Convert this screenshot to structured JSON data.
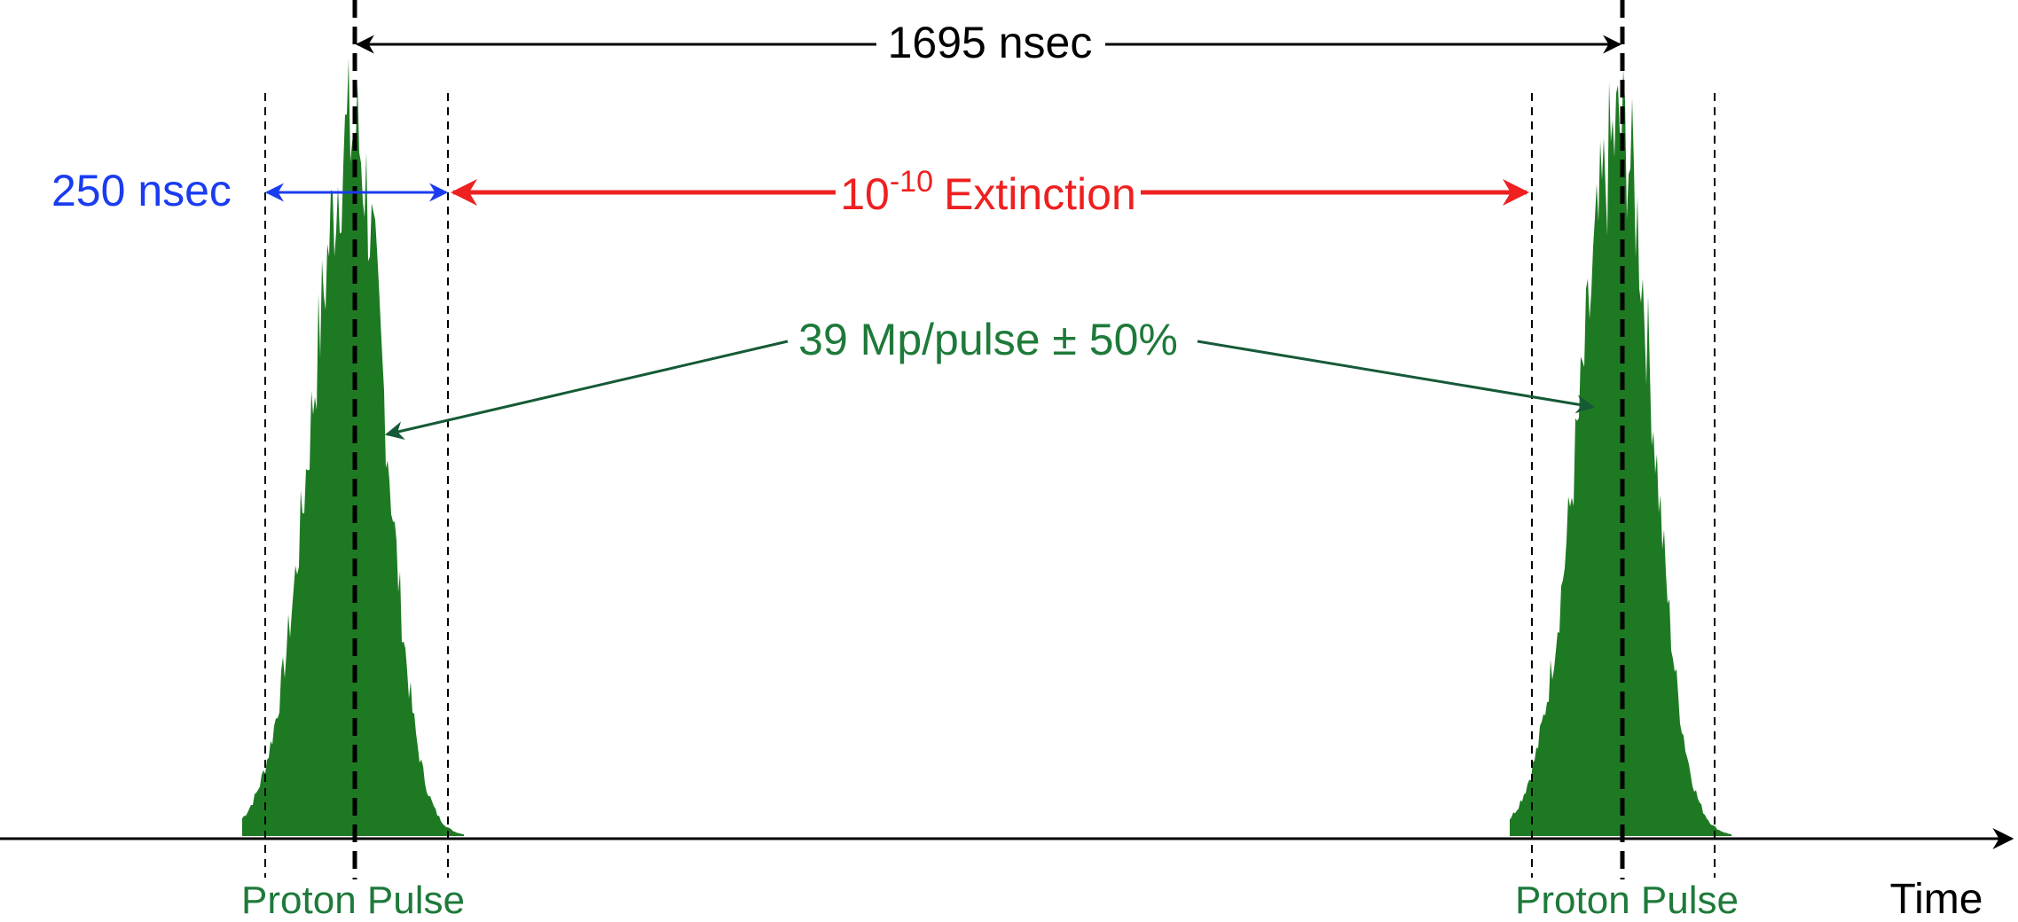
{
  "labels": {
    "period": "1695 nsec",
    "pulse_width": "250 nsec",
    "extinction_base": "10",
    "extinction_exponent": "-10",
    "extinction_word": "Extinction",
    "intensity": "39 Mp/pulse ± 50%",
    "pulse_left": "Proton Pulse",
    "pulse_right": "Proton Pulse",
    "time_axis": "Time"
  },
  "colors": {
    "period": "#000000",
    "pulse_width": "#1a3cf0",
    "extinction": "#ee2020",
    "intensity": "#1e7a3a",
    "pulse_fill": "#1e7a22",
    "intensity_arrows": "#155a36"
  }
}
